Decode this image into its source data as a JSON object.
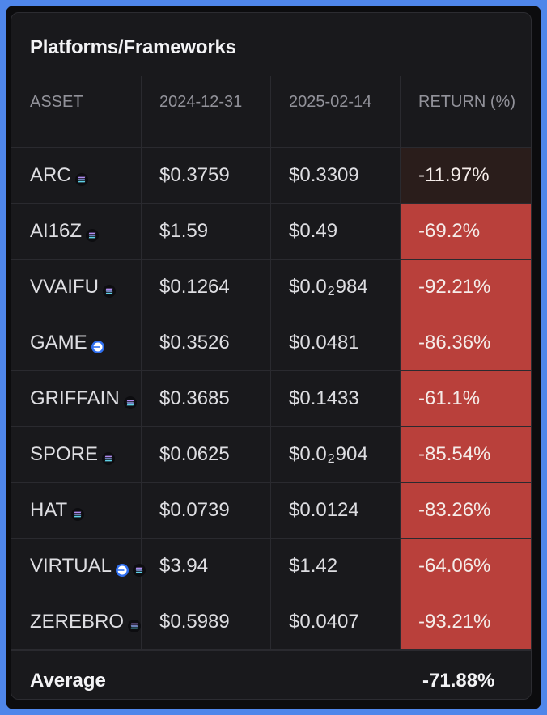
{
  "chart_data": {
    "type": "table",
    "title": "Platforms/Frameworks",
    "columns": [
      "ASSET",
      "2024-12-31",
      "2025-02-14",
      "RETURN (%)"
    ],
    "rows": [
      {
        "asset": "ARC",
        "icons": [
          "solana-icon"
        ],
        "price_2024_12_31": "$0.3759",
        "price_2025_02_14": {
          "text": "$0.3309"
        },
        "return": "-11.97%",
        "return_value": -11.97
      },
      {
        "asset": "AI16Z",
        "icons": [
          "solana-icon"
        ],
        "price_2024_12_31": "$1.59",
        "price_2025_02_14": {
          "text": "$0.49"
        },
        "return": "-69.2%",
        "return_value": -69.2
      },
      {
        "asset": "VVAIFU",
        "icons": [
          "solana-icon"
        ],
        "price_2024_12_31": "$0.1264",
        "price_2025_02_14": {
          "text": "$0.0",
          "sub": "2",
          "rest": "984"
        },
        "return": "-92.21%",
        "return_value": -92.21
      },
      {
        "asset": "GAME",
        "icons": [
          "base-icon"
        ],
        "price_2024_12_31": "$0.3526",
        "price_2025_02_14": {
          "text": "$0.0481"
        },
        "return": "-86.36%",
        "return_value": -86.36
      },
      {
        "asset": "GRIFFAIN",
        "icons": [
          "solana-icon"
        ],
        "price_2024_12_31": "$0.3685",
        "price_2025_02_14": {
          "text": "$0.1433"
        },
        "return": "-61.1%",
        "return_value": -61.1
      },
      {
        "asset": "SPORE",
        "icons": [
          "solana-icon"
        ],
        "price_2024_12_31": "$0.0625",
        "price_2025_02_14": {
          "text": "$0.0",
          "sub": "2",
          "rest": "904"
        },
        "return": "-85.54%",
        "return_value": -85.54
      },
      {
        "asset": "HAT",
        "icons": [
          "solana-icon"
        ],
        "price_2024_12_31": "$0.0739",
        "price_2025_02_14": {
          "text": "$0.0124"
        },
        "return": "-83.26%",
        "return_value": -83.26
      },
      {
        "asset": "VIRTUAL",
        "icons": [
          "base-icon",
          "solana-icon"
        ],
        "price_2024_12_31": "$3.94",
        "price_2025_02_14": {
          "text": "$1.42"
        },
        "return": "-64.06%",
        "return_value": -64.06
      },
      {
        "asset": "ZEREBRO",
        "icons": [
          "solana-icon"
        ],
        "price_2024_12_31": "$0.5989",
        "price_2025_02_14": {
          "text": "$0.0407"
        },
        "return": "-93.21%",
        "return_value": -93.21
      }
    ],
    "average_label": "Average",
    "average_value": "-71.88%"
  },
  "colors": {
    "return_cell_dark": "#2a1d1b",
    "return_cell_red": "#b9403b",
    "background_blue": "#4f86ea"
  }
}
